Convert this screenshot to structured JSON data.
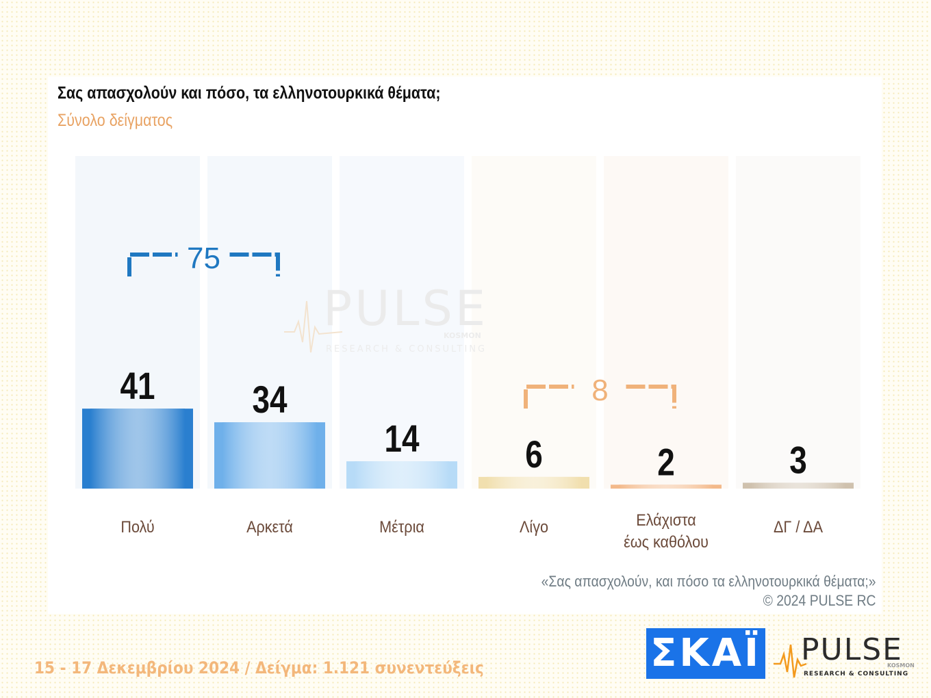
{
  "header": {
    "title": "Σας απασχολούν και πόσο, τα ελληνοτουρκικά θέματα;",
    "subtitle": "Σύνολο δείγματος"
  },
  "chart_data": {
    "type": "bar",
    "categories": [
      "Πολύ",
      "Αρκετά",
      "Μέτρια",
      "Λίγο",
      "Ελάχιστα\nέως καθόλου",
      "ΔΓ / ΔΑ"
    ],
    "values": [
      41,
      34,
      14,
      6,
      2,
      3
    ],
    "title": "Σας απασχολούν και πόσο, τα ελληνοτουρκικά θέματα;",
    "subtitle": "Σύνολο δείγματος",
    "ylim": [
      0,
      100
    ],
    "grid": false,
    "legend": "none",
    "groups": [
      {
        "label": "75",
        "categories": [
          "Πολύ",
          "Αρκετά"
        ],
        "color": "#1f78c1"
      },
      {
        "label": "8",
        "categories": [
          "Λίγο",
          "Ελάχιστα\nέως καθόλου"
        ],
        "color": "#f0b27a"
      }
    ],
    "bar_colors": [
      "#2a7fcf",
      "#6fb0ea",
      "#b7dbf7",
      "#f1dfae",
      "#f3b98a",
      "#cfc1ae"
    ],
    "column_bg_colors": [
      "#f3f7fb",
      "#f4f8fc",
      "#f6f9fd",
      "#fdfbf7",
      "#fdf9f5",
      "#fbfaf9"
    ]
  },
  "source": {
    "question": "«Σας απασχολούν, και πόσο τα ελληνοτουρκικά θέματα;»",
    "copyright": "©  2024  PULSE RC"
  },
  "footer": {
    "text": "15 - 17 Δεκεμβρίου 2024  /  Δείγμα:  1.121 συνεντεύξεις"
  },
  "logos": {
    "skai": "ΣΚΑΪ",
    "pulse_name": "PULSE",
    "pulse_sub": "KOSMON",
    "pulse_tagline": "RESEARCH & CONSULTING"
  },
  "watermark": {
    "name": "PULSE",
    "sub": "KOSMON",
    "tagline": "RESEARCH & CONSULTING"
  }
}
